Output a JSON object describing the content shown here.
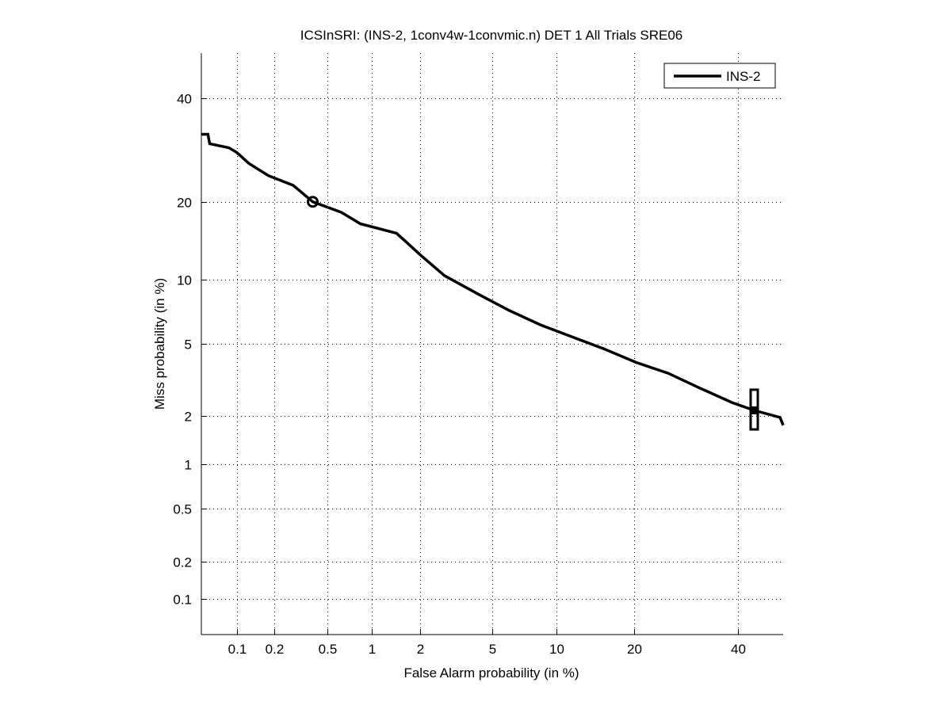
{
  "chart_data": {
    "type": "line",
    "title": "ICSInSRI: (INS-2, 1conv4w-1convmic.n) DET 1 All Trials SRE06",
    "xlabel": "False Alarm probability (in %)",
    "ylabel": "Miss probability (in %)",
    "scale": "normal-deviate",
    "xlim": [
      0.05,
      50
    ],
    "ylim": [
      0.05,
      50
    ],
    "grid": true,
    "legend_position": "top-right",
    "x_ticks": [
      0.1,
      0.2,
      0.5,
      1,
      2,
      5,
      10,
      20,
      40
    ],
    "x_tick_labels": [
      "0.1",
      "0.2",
      "0.5",
      "1",
      "2",
      "5",
      "10",
      "20",
      "40"
    ],
    "y_ticks": [
      0.1,
      0.2,
      0.5,
      1,
      2,
      5,
      10,
      20,
      40
    ],
    "y_tick_labels": [
      "0.1",
      "0.2",
      "0.5",
      "1",
      "2",
      "5",
      "10",
      "20",
      "40"
    ],
    "series": [
      {
        "name": "INS-2",
        "color": "#000000",
        "x": [
          0.05,
          0.057,
          0.059,
          0.086,
          0.1,
          0.126,
          0.18,
          0.28,
          0.39,
          0.62,
          0.84,
          1.44,
          2.0,
          2.77,
          4.15,
          6.0,
          8.5,
          11.7,
          15.6,
          20.3,
          25.8,
          31.9,
          38.6,
          43.5,
          49.3,
          50
        ],
        "y": [
          32.3,
          32.3,
          30.4,
          29.6,
          28.7,
          26.6,
          24.4,
          22.7,
          20.0,
          18.4,
          16.7,
          15.4,
          12.7,
          10.4,
          8.7,
          7.3,
          6.2,
          5.4,
          4.7,
          4.0,
          3.5,
          2.9,
          2.4,
          2.16,
          1.96,
          1.76
        ]
      }
    ],
    "markers": [
      {
        "name": "min-dcf-circle",
        "shape": "circle",
        "x": 0.39,
        "y": 20.0
      },
      {
        "name": "actual-dcf-box",
        "shape": "box",
        "x": 43.5,
        "y": 2.16,
        "y_low": 1.66,
        "y_high": 2.84
      }
    ]
  }
}
